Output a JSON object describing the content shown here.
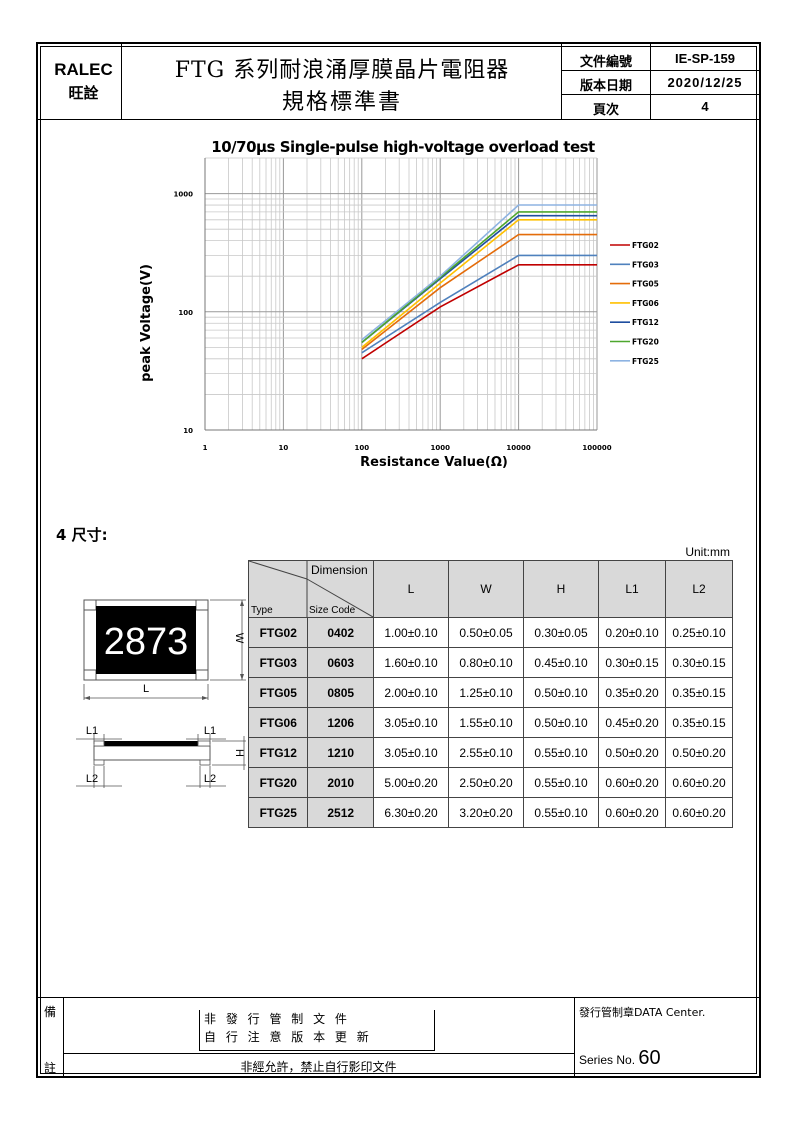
{
  "header": {
    "company_en": "RALEC",
    "company_zh": "旺詮",
    "title_line1": "FTG 系列耐浪涌厚膜晶片電阻器",
    "title_line2": "規格標準書",
    "doc_no_label": "文件編號",
    "doc_no": "IE-SP-159",
    "version_date_label": "版本日期",
    "version_date": "2020/12/25",
    "page_label": "頁次",
    "page": "4"
  },
  "chart_data": {
    "type": "line",
    "title": "10/70µs Single-pulse high-voltage overload test",
    "xlabel": "Resistance Value(Ω)",
    "ylabel": "peak Voltage(V)",
    "xscale": "log",
    "yscale": "log",
    "xlim": [
      1,
      100000
    ],
    "ylim": [
      10,
      2000
    ],
    "xticks": [
      "1",
      "10",
      "100",
      "1000",
      "10000",
      "100000"
    ],
    "yticks": [
      "10",
      "100",
      "1000"
    ],
    "grid": true,
    "legend_position": "right",
    "series": [
      {
        "name": "FTG02",
        "color": "#c00000",
        "points": [
          [
            100,
            40
          ],
          [
            1000,
            110
          ],
          [
            10000,
            250
          ],
          [
            100000,
            250
          ]
        ]
      },
      {
        "name": "FTG03",
        "color": "#4f81bd",
        "points": [
          [
            100,
            45
          ],
          [
            1000,
            120
          ],
          [
            10000,
            300
          ],
          [
            100000,
            300
          ]
        ]
      },
      {
        "name": "FTG05",
        "color": "#e46c0a",
        "points": [
          [
            100,
            48
          ],
          [
            1000,
            160
          ],
          [
            10000,
            450
          ],
          [
            100000,
            450
          ]
        ]
      },
      {
        "name": "FTG06",
        "color": "#ffc000",
        "points": [
          [
            100,
            50
          ],
          [
            1000,
            175
          ],
          [
            10000,
            600
          ],
          [
            100000,
            600
          ]
        ]
      },
      {
        "name": "FTG12",
        "color": "#1f4e9f",
        "points": [
          [
            100,
            55
          ],
          [
            1000,
            190
          ],
          [
            10000,
            650
          ],
          [
            100000,
            650
          ]
        ]
      },
      {
        "name": "FTG20",
        "color": "#4ea72e",
        "points": [
          [
            100,
            55
          ],
          [
            1000,
            195
          ],
          [
            10000,
            700
          ],
          [
            100000,
            700
          ]
        ]
      },
      {
        "name": "FTG25",
        "color": "#8db3e2",
        "points": [
          [
            100,
            58
          ],
          [
            1000,
            200
          ],
          [
            10000,
            800
          ],
          [
            100000,
            800
          ]
        ]
      }
    ]
  },
  "section": {
    "number": "4",
    "title": "尺寸:",
    "unit": "Unit:mm"
  },
  "drawing": {
    "marking": "2873",
    "w_label": "W",
    "l_label": "L",
    "h_label": "H",
    "l1_label": "L1",
    "l2_label": "L2"
  },
  "table": {
    "dimension_label": "Dimension",
    "type_label": "Type",
    "size_code_label": "Size Code",
    "columns": [
      "L",
      "W",
      "H",
      "L1",
      "L2"
    ],
    "rows": [
      {
        "type": "FTG02",
        "code": "0402",
        "values": [
          "1.00±0.10",
          "0.50±0.05",
          "0.30±0.05",
          "0.20±0.10",
          "0.25±0.10"
        ]
      },
      {
        "type": "FTG03",
        "code": "0603",
        "values": [
          "1.60±0.10",
          "0.80±0.10",
          "0.45±0.10",
          "0.30±0.15",
          "0.30±0.15"
        ]
      },
      {
        "type": "FTG05",
        "code": "0805",
        "values": [
          "2.00±0.10",
          "1.25±0.10",
          "0.50±0.10",
          "0.35±0.20",
          "0.35±0.15"
        ]
      },
      {
        "type": "FTG06",
        "code": "1206",
        "values": [
          "3.05±0.10",
          "1.55±0.10",
          "0.50±0.10",
          "0.45±0.20",
          "0.35±0.15"
        ]
      },
      {
        "type": "FTG12",
        "code": "1210",
        "values": [
          "3.05±0.10",
          "2.55±0.10",
          "0.55±0.10",
          "0.50±0.20",
          "0.50±0.20"
        ]
      },
      {
        "type": "FTG20",
        "code": "2010",
        "values": [
          "5.00±0.20",
          "2.50±0.20",
          "0.55±0.10",
          "0.60±0.20",
          "0.60±0.20"
        ]
      },
      {
        "type": "FTG25",
        "code": "2512",
        "values": [
          "6.30±0.20",
          "3.20±0.20",
          "0.55±0.10",
          "0.60±0.20",
          "0.60±0.20"
        ]
      }
    ]
  },
  "footer": {
    "remark_label_1": "備",
    "remark_label_2": "註",
    "notice_line1": "非 發 行 管 制 文 件",
    "notice_line2": "自 行 注 意 版 本 更 新",
    "notice_line3": "非經允許，禁止自行影印文件",
    "stamp_label": "發行管制章DATA Center.",
    "series_label": "Series No.",
    "series_no": "60"
  }
}
